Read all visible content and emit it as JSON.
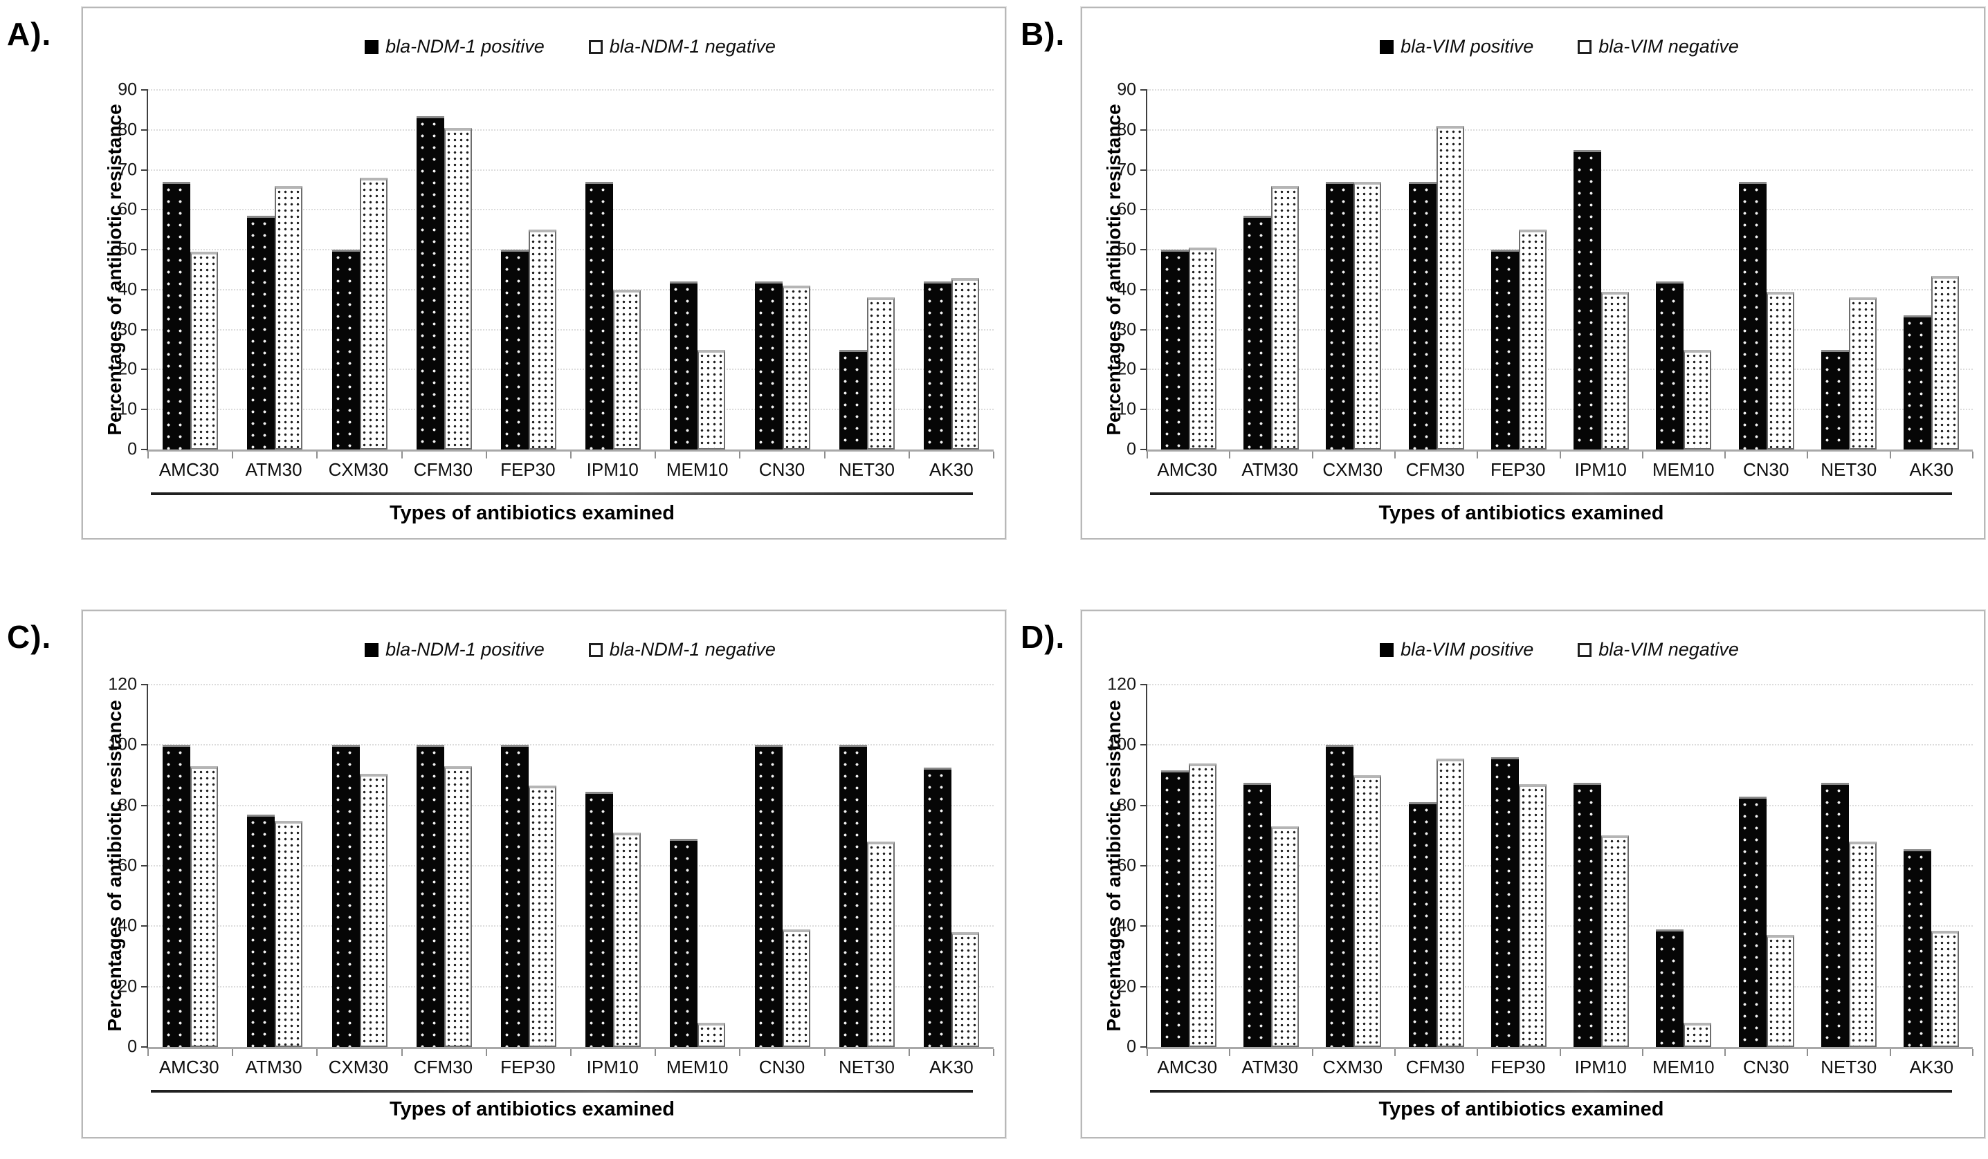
{
  "figure": {
    "y_axis_title": "Percentages of antibiotic resistance",
    "x_axis_title": "Types of antibiotics examined",
    "colors": {
      "positive_bar": "#060606",
      "negative_bar_fill": "#ffffff",
      "negative_bar_border": "#6e6e6e",
      "gridline": "#dcdcdc",
      "axis_line": "#3f3f3f",
      "baseline": "#a8a8a8",
      "panel_border": "#b8b8b8"
    },
    "panels": [
      {
        "label": "A)."
      },
      {
        "label": "B)."
      },
      {
        "label": "C)."
      },
      {
        "label": "D)."
      }
    ]
  },
  "chart_data": [
    {
      "type": "bar",
      "panel": "A",
      "categories": [
        "AMC30",
        "ATM30",
        "CXM30",
        "CFM30",
        "FEP30",
        "IPM10",
        "MEM10",
        "CN30",
        "NET30",
        "AK30"
      ],
      "series": [
        {
          "name": "bla-NDM-1 positive",
          "values": [
            67,
            58.5,
            50,
            83.5,
            50,
            67,
            42,
            42,
            25,
            42
          ]
        },
        {
          "name": "bla-NDM-1 negative",
          "values": [
            49.5,
            66,
            68,
            80.5,
            55,
            40,
            25,
            41,
            38,
            43
          ]
        }
      ],
      "xlabel": "Types of antibiotics examined",
      "ylabel": "Percentages of antibiotic resistance",
      "ylim": [
        0,
        90
      ],
      "ytick_step": 10,
      "grid": true,
      "legend_position": "top"
    },
    {
      "type": "bar",
      "panel": "B",
      "categories": [
        "AMC30",
        "ATM30",
        "CXM30",
        "CFM30",
        "FEP30",
        "IPM10",
        "MEM10",
        "CN30",
        "NET30",
        "AK30"
      ],
      "series": [
        {
          "name": "bla-VIM positive",
          "values": [
            50,
            58.5,
            67,
            67,
            50,
            75,
            42,
            67,
            25,
            33.5
          ]
        },
        {
          "name": "bla-VIM negative",
          "values": [
            50.5,
            66,
            67,
            81,
            55,
            39.5,
            25,
            39.5,
            38,
            43.5
          ]
        }
      ],
      "xlabel": "Types of antibiotics examined",
      "ylabel": "Percentages of antibiotic resistance",
      "ylim": [
        0,
        90
      ],
      "ytick_step": 10,
      "grid": true,
      "legend_position": "top"
    },
    {
      "type": "bar",
      "panel": "C",
      "categories": [
        "AMC30",
        "ATM30",
        "CXM30",
        "CFM30",
        "FEP30",
        "IPM10",
        "MEM10",
        "CN30",
        "NET30",
        "AK30"
      ],
      "series": [
        {
          "name": "bla-NDM-1 positive",
          "values": [
            100,
            77,
            100,
            100,
            100,
            84.5,
            69,
            100,
            100,
            92.5
          ]
        },
        {
          "name": "bla-NDM-1 negative",
          "values": [
            93,
            75,
            90.5,
            93,
            86.5,
            71,
            8,
            39,
            68,
            38
          ]
        }
      ],
      "xlabel": "Types of antibiotics examined",
      "ylabel": "Percentages of antibiotic resistance",
      "ylim": [
        0,
        120
      ],
      "ytick_step": 20,
      "grid": true,
      "legend_position": "top"
    },
    {
      "type": "bar",
      "panel": "D",
      "categories": [
        "AMC30",
        "ATM30",
        "CXM30",
        "CFM30",
        "FEP30",
        "IPM10",
        "MEM10",
        "CN30",
        "NET30",
        "AK30"
      ],
      "series": [
        {
          "name": "bla-VIM positive",
          "values": [
            91.5,
            87.5,
            100,
            81,
            96,
            87.5,
            39,
            83,
            87.5,
            65.5
          ]
        },
        {
          "name": "bla-VIM negative",
          "values": [
            94,
            73,
            90,
            95.5,
            87,
            70,
            8,
            37,
            68,
            38.5
          ]
        }
      ],
      "xlabel": "Types of antibiotics examined",
      "ylabel": "Percentages of antibiotic resistance",
      "ylim": [
        0,
        120
      ],
      "ytick_step": 20,
      "grid": true,
      "legend_position": "top"
    }
  ]
}
